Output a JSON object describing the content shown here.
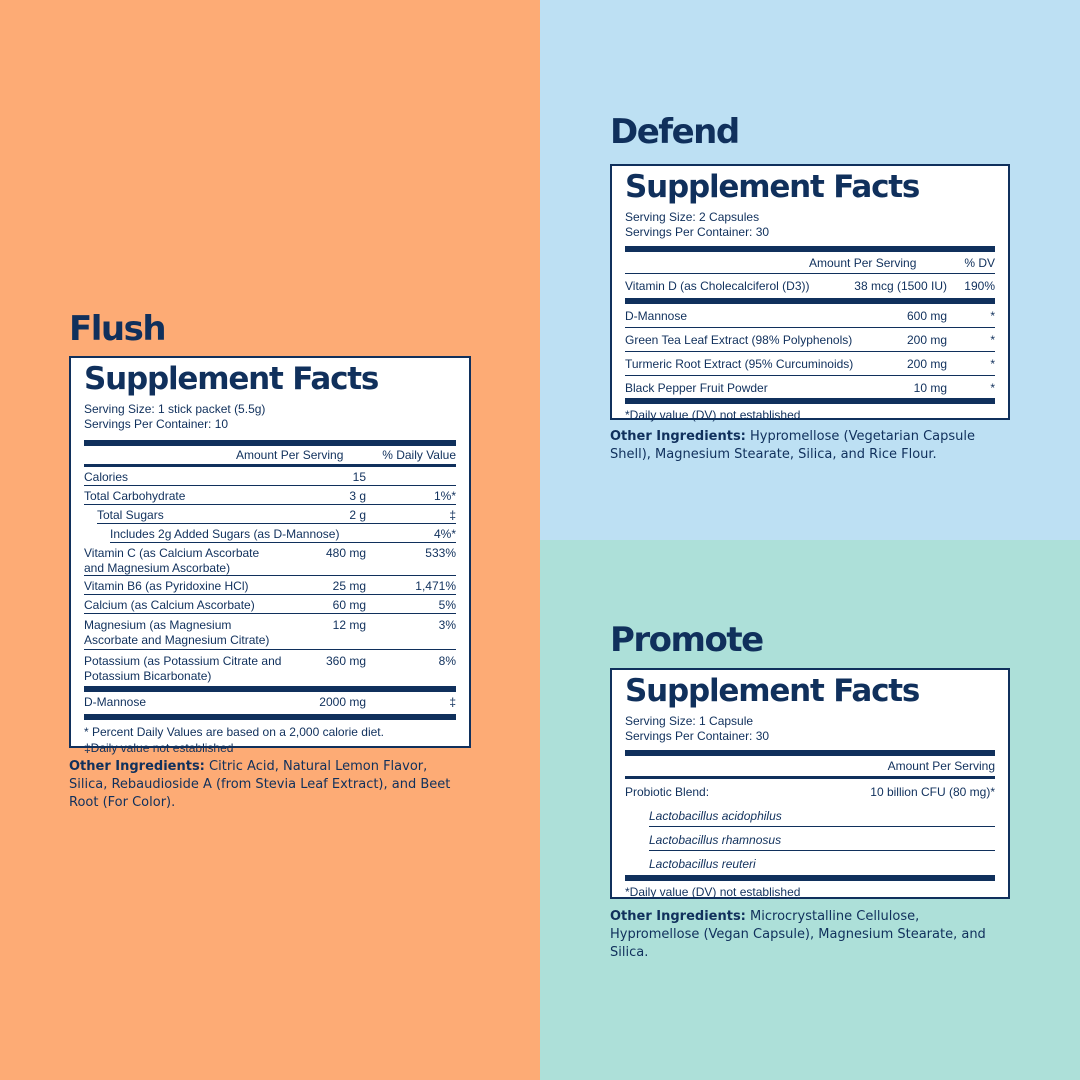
{
  "flush": {
    "name": "Flush",
    "title": "Supplement Facts",
    "serving_size": "Serving Size: 1 stick packet (5.5g)",
    "servings_per_container": "Servings Per Container: 10",
    "col_amount": "Amount Per Serving",
    "col_dv": "% Daily Value",
    "rows": [
      {
        "name": "Calories",
        "amount": "15",
        "dv": ""
      },
      {
        "name": "Total Carbohydrate",
        "amount": "3 g",
        "dv": "1%*"
      },
      {
        "name": "Total Sugars",
        "amount": "2 g",
        "dv": "‡"
      },
      {
        "name": "Includes 2g Added Sugars (as D-Mannose)",
        "amount": "",
        "dv": "4%*"
      },
      {
        "name": "Vitamin C (as Calcium Ascorbate and Magnesium Ascorbate)",
        "amount": "480 mg",
        "dv": "533%"
      },
      {
        "name": "Vitamin B6 (as Pyridoxine HCl)",
        "amount": "25 mg",
        "dv": "1,471%"
      },
      {
        "name": "Calcium (as Calcium Ascorbate)",
        "amount": "60 mg",
        "dv": "5%"
      },
      {
        "name": "Magnesium (as Magnesium Ascorbate and Magnesium Citrate)",
        "amount": "12 mg",
        "dv": "3%"
      },
      {
        "name": "Potassium (as Potassium Citrate and Potassium Bicarbonate)",
        "amount": "360 mg",
        "dv": "8%"
      }
    ],
    "extra_row": {
      "name": "D-Mannose",
      "amount": "2000 mg",
      "dv": "‡"
    },
    "footnote_1": "* Percent Daily Values are based on a 2,000 calorie diet.",
    "footnote_2": "‡Daily value not established",
    "other_label": "Other Ingredients:",
    "other_text": "Citric Acid, Natural Lemon Flavor, Silica, Rebaudioside A (from Stevia Leaf Extract), and Beet Root (For Color)."
  },
  "defend": {
    "name": "Defend",
    "title": "Supplement Facts",
    "serving_size": "Serving Size: 2 Capsules",
    "servings_per_container": "Servings Per Container: 30",
    "col_amount": "Amount Per Serving",
    "col_dv": "% DV",
    "vitamin_row": {
      "name": "Vitamin D (as Cholecalciferol (D3))",
      "amount": "38 mcg (1500 IU)",
      "dv": "190%"
    },
    "rows": [
      {
        "name": "D-Mannose",
        "amount": "600 mg",
        "dv": "*"
      },
      {
        "name": "Green Tea Leaf Extract (98% Polyphenols)",
        "amount": "200 mg",
        "dv": "*"
      },
      {
        "name": "Turmeric Root Extract (95% Curcuminoids)",
        "amount": "200 mg",
        "dv": "*"
      },
      {
        "name": "Black Pepper Fruit Powder",
        "amount": "10 mg",
        "dv": "*"
      }
    ],
    "footnote": "*Daily value (DV) not established",
    "other_label": "Other Ingredients:",
    "other_text": "Hypromellose (Vegetarian Capsule Shell), Magnesium Stearate, Silica, and Rice Flour."
  },
  "promote": {
    "name": "Promote",
    "title": "Supplement Facts",
    "serving_size": "Serving Size: 1 Capsule",
    "servings_per_container": "Servings Per Container: 30",
    "col_amount": "Amount Per Serving",
    "blend_name": "Probiotic Blend:",
    "blend_amount": "10 billion CFU (80 mg)*",
    "strains": [
      "Lactobacillus acidophilus",
      "Lactobacillus rhamnosus",
      "Lactobacillus reuteri"
    ],
    "footnote": "*Daily value (DV) not established",
    "other_label": "Other Ingredients:",
    "other_text": "Microcrystalline Cellulose, Hypromellose (Vegan Capsule), Magnesium Stearate, and Silica."
  },
  "colors": {
    "navy": "#10305c",
    "flush_bg": "#fdab75",
    "defend_bg": "#bde0f3",
    "promote_bg": "#ade0d9"
  }
}
